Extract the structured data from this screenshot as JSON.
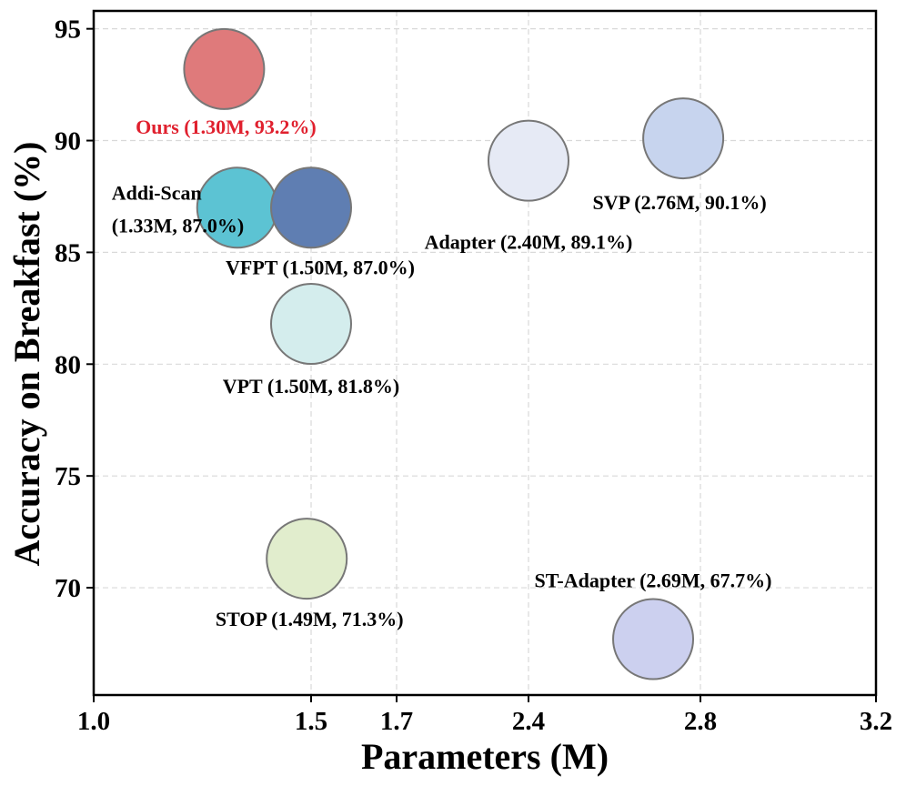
{
  "chart_data": {
    "type": "scatter",
    "xlabel": "Parameters (M)",
    "ylabel": "Accuracy on Breakfast (%)",
    "x_ticks": [
      {
        "label": "1.0",
        "value": 1.0
      },
      {
        "label": "1.5",
        "value": 1.5
      },
      {
        "label": "1.7",
        "value": 1.7
      },
      {
        "label": "2.4",
        "value": 2.4
      },
      {
        "label": "2.8",
        "value": 2.8
      },
      {
        "label": "3.2",
        "value": 3.2
      }
    ],
    "y_ticks": [
      "70",
      "75",
      "80",
      "85",
      "90",
      "95"
    ],
    "ylim": [
      65.2,
      95.8
    ],
    "grid": true,
    "points": [
      {
        "label_lines": [
          "Ours (1.30M, 93.2%)"
        ],
        "x": 1.3,
        "y": 93.2,
        "color": "#df7a7b",
        "label_color": "#e0202e"
      },
      {
        "label_lines": [
          "Addi-Scan",
          "(1.33M, 87.0%)"
        ],
        "x": 1.33,
        "y": 87.0,
        "color": "#5cc3d3",
        "label_color": "#000000"
      },
      {
        "label_lines": [
          "VFPT (1.50M, 87.0%)"
        ],
        "x": 1.5,
        "y": 87.0,
        "color": "#5f7eb2",
        "label_color": "#000000"
      },
      {
        "label_lines": [
          "VPT (1.50M, 81.8%)"
        ],
        "x": 1.5,
        "y": 81.8,
        "color": "#d4eded",
        "label_color": "#000000"
      },
      {
        "label_lines": [
          "STOP (1.49M, 71.3%)"
        ],
        "x": 1.49,
        "y": 71.3,
        "color": "#e1edcd",
        "label_color": "#000000"
      },
      {
        "label_lines": [
          "Adapter (2.40M, 89.1%)"
        ],
        "x": 2.4,
        "y": 89.1,
        "color": "#e6eaf5",
        "label_color": "#000000"
      },
      {
        "label_lines": [
          "SVP (2.76M, 90.1%)"
        ],
        "x": 2.76,
        "y": 90.1,
        "color": "#c7d4ee",
        "label_color": "#000000"
      },
      {
        "label_lines": [
          "ST-Adapter (2.69M, 67.7%)"
        ],
        "x": 2.69,
        "y": 67.7,
        "color": "#ccd0ef",
        "label_color": "#000000"
      }
    ]
  }
}
